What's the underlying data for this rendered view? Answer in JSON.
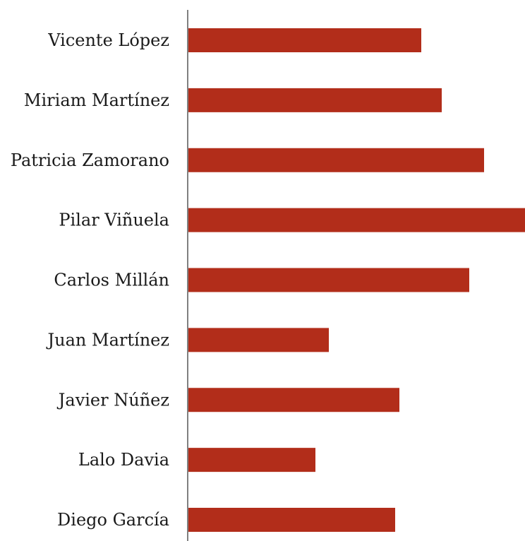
{
  "chart_data": {
    "type": "bar",
    "orientation": "horizontal",
    "title": "",
    "xlabel": "",
    "ylabel": "",
    "categories": [
      "Vicente López",
      "Miriam Martínez",
      "Patricia Zamorano",
      "Pilar Viñuela",
      "Carlos Millán",
      "Juan Martínez",
      "Javier Núñez",
      "Lalo Davia",
      "Diego García"
    ],
    "values": [
      330,
      359,
      419,
      477,
      398,
      199,
      299,
      180,
      293
    ],
    "xlim": [
      0,
      477
    ],
    "grid": false,
    "legend": "none",
    "colors": {
      "bar": "#b22d1a",
      "axis": "#808080",
      "label": "#1a1a1a"
    }
  }
}
